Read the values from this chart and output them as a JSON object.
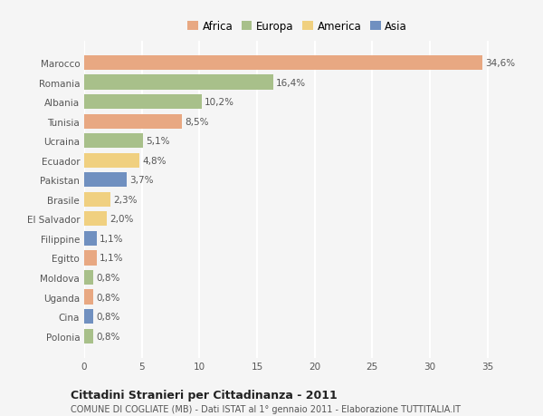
{
  "categories": [
    "Marocco",
    "Romania",
    "Albania",
    "Tunisia",
    "Ucraina",
    "Ecuador",
    "Pakistan",
    "Brasile",
    "El Salvador",
    "Filippine",
    "Egitto",
    "Moldova",
    "Uganda",
    "Cina",
    "Polonia"
  ],
  "values": [
    34.6,
    16.4,
    10.2,
    8.5,
    5.1,
    4.8,
    3.7,
    2.3,
    2.0,
    1.1,
    1.1,
    0.8,
    0.8,
    0.8,
    0.8
  ],
  "labels": [
    "34,6%",
    "16,4%",
    "10,2%",
    "8,5%",
    "5,1%",
    "4,8%",
    "3,7%",
    "2,3%",
    "2,0%",
    "1,1%",
    "1,1%",
    "0,8%",
    "0,8%",
    "0,8%",
    "0,8%"
  ],
  "colors": [
    "#E8A882",
    "#A8C08A",
    "#A8C08A",
    "#E8A882",
    "#A8C08A",
    "#F0D080",
    "#7090C0",
    "#F0D080",
    "#F0D080",
    "#7090C0",
    "#E8A882",
    "#A8C08A",
    "#E8A882",
    "#7090C0",
    "#A8C08A"
  ],
  "legend_labels": [
    "Africa",
    "Europa",
    "America",
    "Asia"
  ],
  "legend_colors": [
    "#E8A882",
    "#A8C08A",
    "#F0D080",
    "#7090C0"
  ],
  "title": "Cittadini Stranieri per Cittadinanza - 2011",
  "subtitle": "COMUNE DI COGLIATE (MB) - Dati ISTAT al 1° gennaio 2011 - Elaborazione TUTTITALIA.IT",
  "xlim": [
    0,
    37
  ],
  "xticks": [
    0,
    5,
    10,
    15,
    20,
    25,
    30,
    35
  ],
  "background_color": "#f5f5f5",
  "bar_height": 0.75,
  "grid_color": "#ffffff",
  "label_fontsize": 7.5,
  "tick_fontsize": 7.5,
  "ytick_fontsize": 7.5
}
